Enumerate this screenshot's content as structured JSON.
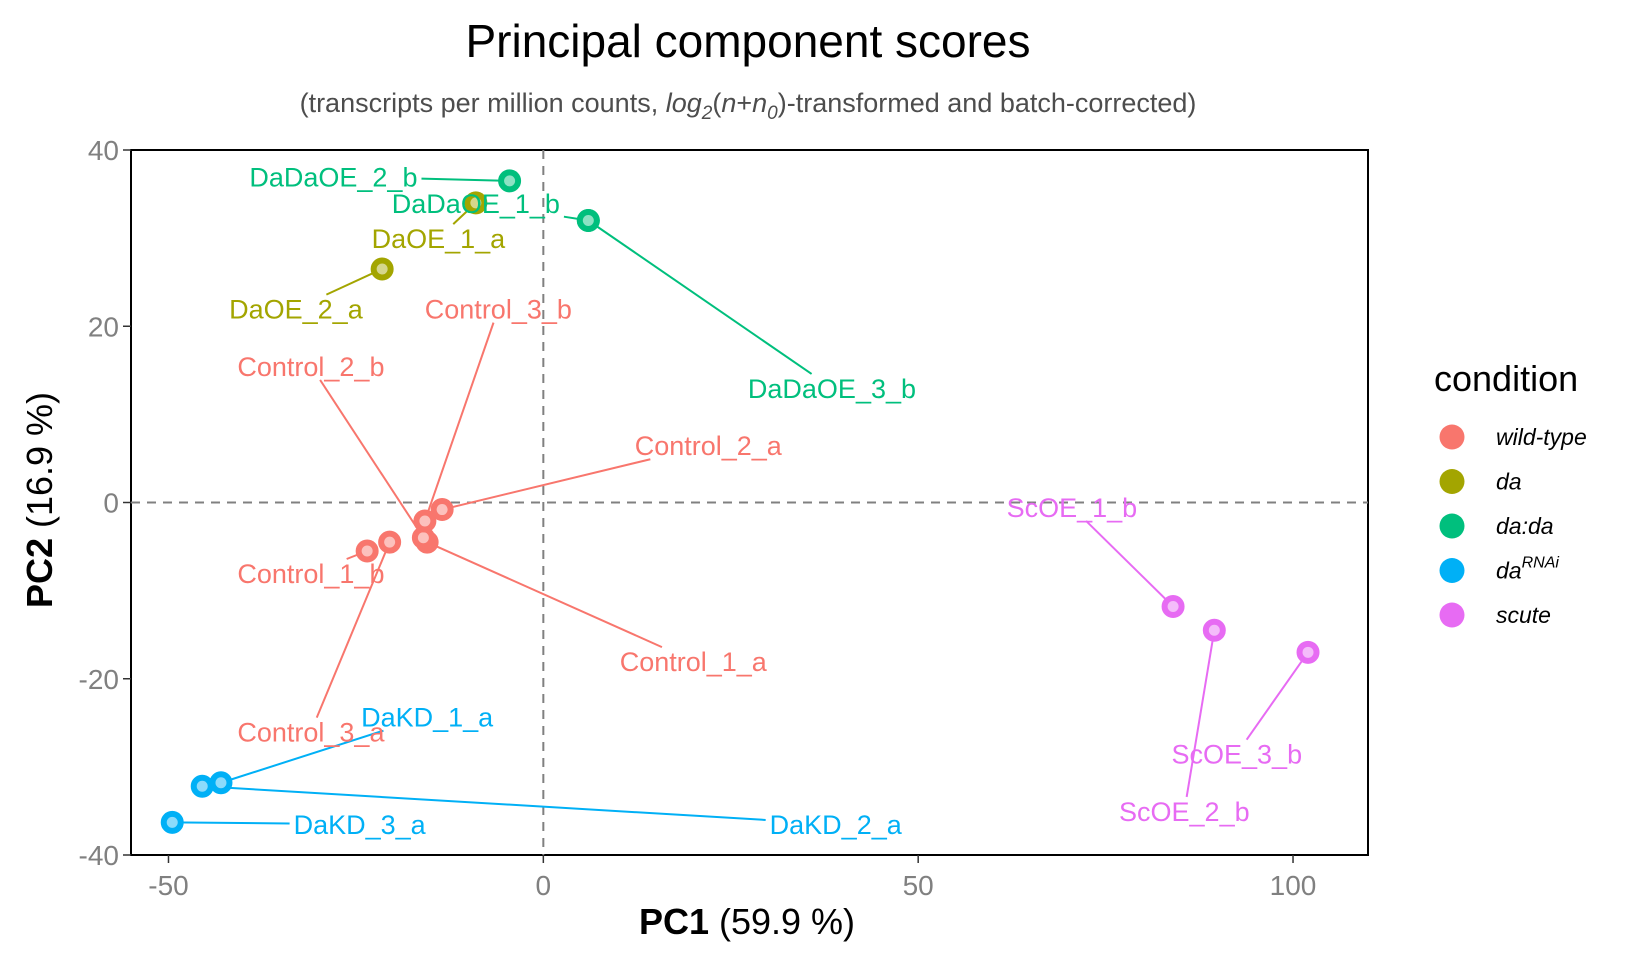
{
  "chart_data": {
    "type": "scatter",
    "title": "Principal component scores",
    "subtitle": {
      "pre": "(transcripts per million counts, ",
      "log": "log",
      "log_sub": "2",
      "paren_open": "(",
      "n": "n",
      "plus": "+",
      "n0": "n",
      "n0_sub": "0",
      "paren_close": ")",
      "post": "-transformed and batch-corrected)"
    },
    "xlabel": {
      "bold": "PC1",
      "rest": " (59.9 %)"
    },
    "ylabel": {
      "bold": "PC2",
      "rest": " (16.9 %)"
    },
    "xlim": [
      -55,
      110
    ],
    "ylim": [
      -40,
      40
    ],
    "xticks": [
      -50,
      0,
      50,
      100
    ],
    "yticks": [
      -40,
      -20,
      0,
      20,
      40
    ],
    "reference_lines": {
      "x": 0,
      "y": 0,
      "style": "dashed"
    },
    "legend": {
      "title": "condition",
      "placement": "right",
      "entries": [
        {
          "key": "wild-type",
          "label": "wild-type",
          "color": "#F8766D"
        },
        {
          "key": "da",
          "label": "da",
          "color": "#A3A500"
        },
        {
          "key": "da:da",
          "label": "da:da",
          "color": "#00BF7D"
        },
        {
          "key": "daRNAi",
          "label": "da",
          "sup": "RNAi",
          "color": "#00B0F6"
        },
        {
          "key": "scute",
          "label": "scute",
          "color": "#E76BF3"
        }
      ]
    },
    "points": [
      {
        "label": "Control_1_a",
        "condition": "wild-type",
        "x": -15.5,
        "y": -4.5,
        "lx": 20,
        "ly": -18
      },
      {
        "label": "Control_1_b",
        "condition": "wild-type",
        "x": -23.5,
        "y": -5.5,
        "lx": -31,
        "ly": -8
      },
      {
        "label": "Control_2_a",
        "condition": "wild-type",
        "x": -13.5,
        "y": -0.8,
        "lx": 22,
        "ly": 6.5
      },
      {
        "label": "Control_2_b",
        "condition": "wild-type",
        "x": -16,
        "y": -4,
        "lx": -31,
        "ly": 15.5
      },
      {
        "label": "Control_3_a",
        "condition": "wild-type",
        "x": -20.5,
        "y": -4.5,
        "lx": -31,
        "ly": -26
      },
      {
        "label": "Control_3_b",
        "condition": "wild-type",
        "x": -15.8,
        "y": -2.1,
        "lx": -6,
        "ly": 22
      },
      {
        "label": "DaOE_1_a",
        "condition": "da",
        "x": -9,
        "y": 34,
        "lx": -14,
        "ly": 30
      },
      {
        "label": "DaOE_2_a",
        "condition": "da",
        "x": -21.5,
        "y": 26.5,
        "lx": -33,
        "ly": 22
      },
      {
        "label": "DaDaOE_1_b",
        "condition": "da:da",
        "x": 6,
        "y": 32,
        "lx": -9,
        "ly": 34
      },
      {
        "label": "DaDaOE_2_b",
        "condition": "da:da",
        "x": -4.5,
        "y": 36.5,
        "lx": -28,
        "ly": 37
      },
      {
        "label": "DaDaOE_3_b",
        "condition": "da:da",
        "x": 6,
        "y": 32,
        "lx": 38.5,
        "ly": 13
      },
      {
        "label": "DaKD_1_a",
        "condition": "daRNAi",
        "x": -43,
        "y": -31.8,
        "lx": -15.5,
        "ly": -24.3
      },
      {
        "label": "DaKD_2_a",
        "condition": "daRNAi",
        "x": -45.5,
        "y": -32.2,
        "lx": 39,
        "ly": -36.5
      },
      {
        "label": "DaKD_3_a",
        "condition": "daRNAi",
        "x": -49.5,
        "y": -36.3,
        "lx": -24.5,
        "ly": -36.5
      },
      {
        "label": "ScOE_1_b",
        "condition": "scute",
        "x": 84,
        "y": -11.8,
        "lx": 70.5,
        "ly": -0.5
      },
      {
        "label": "ScOE_2_b",
        "condition": "scute",
        "x": 89.5,
        "y": -14.5,
        "lx": 85.5,
        "ly": -35
      },
      {
        "label": "ScOE_3_b",
        "condition": "scute",
        "x": 102,
        "y": -17,
        "lx": 92.5,
        "ly": -28.5
      }
    ]
  }
}
